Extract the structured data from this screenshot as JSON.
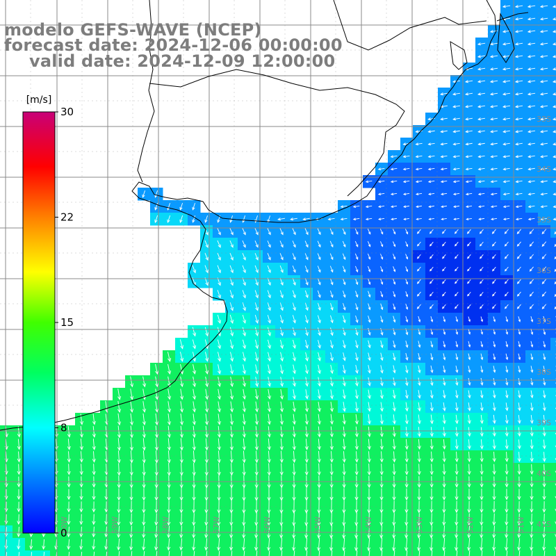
{
  "title": {
    "line1": "modelo GEFS-WAVE (NCEP)",
    "line2": "forecast date: 2024-12-06 00:00:00",
    "line3": "valid date: 2024-12-09 12:00:00"
  },
  "colorbar": {
    "unit": "[m/s]",
    "ticks": [
      {
        "label": "30",
        "value": 30
      },
      {
        "label": "22",
        "value": 22.5
      },
      {
        "label": "15",
        "value": 15
      },
      {
        "label": "8",
        "value": 7.5
      },
      {
        "label": "0",
        "value": 0
      }
    ],
    "range": [
      0,
      30
    ],
    "colors": [
      "#0000ff",
      "#0080ff",
      "#00ffff",
      "#00ff00",
      "#ffff00",
      "#ff8000",
      "#ff0000",
      "#c80078"
    ]
  },
  "grid": {
    "lat_labels": [
      "33S",
      "34S",
      "35S",
      "36S",
      "37S",
      "38S",
      "39S",
      "40S",
      "41S"
    ],
    "lon_labels": [
      "60W",
      "59W",
      "58W",
      "57W",
      "56W",
      "55W",
      "54W",
      "53W",
      "52W",
      "51W"
    ]
  },
  "field": {
    "description_level": "wind speed field with direction arrows",
    "ocean_palette": {
      "deep_blue": "#0030f0",
      "blue": "#0a64ff",
      "light_blue": "#0a9aff",
      "cyan": "#08d8f8",
      "aqua": "#00f8d8",
      "green": "#10f060"
    }
  },
  "colors": {
    "land": "#ffffff",
    "coast": "#000000",
    "grid_line": "#8a8a8a",
    "title_text": "#7d7d7d",
    "arrow": "#ffffff"
  }
}
